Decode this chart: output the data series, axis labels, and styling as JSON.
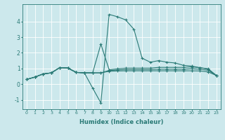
{
  "xlabel": "Humidex (Indice chaleur)",
  "background_color": "#cce8ec",
  "grid_color": "#ffffff",
  "line_color": "#2a7a76",
  "xlim": [
    -0.5,
    23.5
  ],
  "ylim": [
    -1.6,
    5.1
  ],
  "xticks": [
    0,
    1,
    2,
    3,
    4,
    5,
    6,
    7,
    8,
    9,
    10,
    11,
    12,
    13,
    14,
    15,
    16,
    17,
    18,
    19,
    20,
    21,
    22,
    23
  ],
  "yticks": [
    -1,
    0,
    1,
    2,
    3,
    4
  ],
  "series": [
    [
      0.3,
      0.45,
      0.65,
      0.72,
      1.05,
      1.05,
      0.75,
      0.72,
      -0.25,
      -1.2,
      4.45,
      4.3,
      4.1,
      3.5,
      1.65,
      1.4,
      1.5,
      1.4,
      1.35,
      1.2,
      1.15,
      1.05,
      0.95,
      0.55
    ],
    [
      0.3,
      0.45,
      0.65,
      0.72,
      1.05,
      1.02,
      0.75,
      0.72,
      0.72,
      2.55,
      0.92,
      0.97,
      1.02,
      1.02,
      1.02,
      1.02,
      1.07,
      1.07,
      1.07,
      1.07,
      1.1,
      1.05,
      0.98,
      0.55
    ],
    [
      0.3,
      0.45,
      0.65,
      0.72,
      1.05,
      1.02,
      0.75,
      0.72,
      0.72,
      0.72,
      0.87,
      0.9,
      0.93,
      0.93,
      0.93,
      0.93,
      0.95,
      0.95,
      0.95,
      0.95,
      0.98,
      0.95,
      0.88,
      0.55
    ],
    [
      0.3,
      0.45,
      0.65,
      0.72,
      1.05,
      1.02,
      0.75,
      0.72,
      0.72,
      0.72,
      0.82,
      0.84,
      0.85,
      0.85,
      0.85,
      0.85,
      0.85,
      0.85,
      0.85,
      0.85,
      0.85,
      0.84,
      0.78,
      0.55
    ]
  ]
}
